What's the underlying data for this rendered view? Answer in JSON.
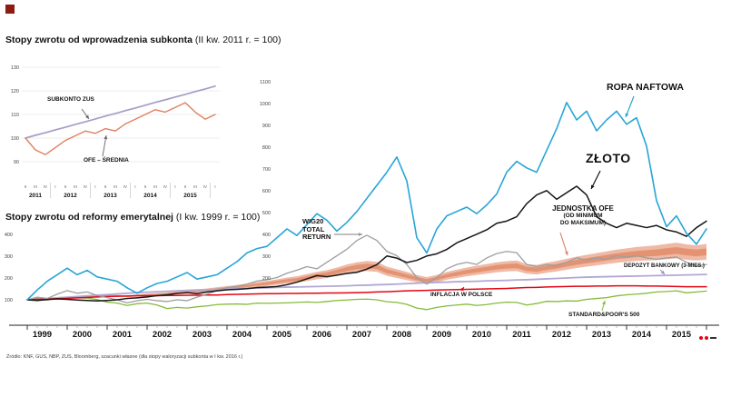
{
  "source": "Źródło: KNF, GUS, NBP, ZUS, Bloomberg, szacunki własne (dla stopy waloryzacji subkonta w I kw. 2016 r.)",
  "brand": {
    "square_color": "#8c1b12"
  },
  "inset_chart": {
    "title_bold": "Stopy zwrotu od wprowadzenia subkonta",
    "title_normal": " (II kw. 2011 r. = 100)",
    "labels": {
      "subkonto": "SUBKONTO ZUS",
      "ofe": "OFE – ŚREDNIA"
    },
    "chart_data": {
      "type": "line",
      "ylim": [
        86,
        134
      ],
      "yticks": [
        90,
        100,
        110,
        120,
        130
      ],
      "grid": true,
      "x_quarters": [
        "II",
        "III",
        "IV",
        "I",
        "II",
        "III",
        "IV",
        "I",
        "II",
        "III",
        "IV",
        "I",
        "II",
        "III",
        "IV",
        "I",
        "II",
        "III",
        "IV",
        "I"
      ],
      "year_groups": [
        {
          "label": "2011",
          "span": [
            0,
            2
          ]
        },
        {
          "label": "2012",
          "span": [
            3,
            6
          ]
        },
        {
          "label": "2013",
          "span": [
            7,
            10
          ]
        },
        {
          "label": "2014",
          "span": [
            11,
            14
          ]
        },
        {
          "label": "2015",
          "span": [
            15,
            18
          ]
        }
      ],
      "series": [
        {
          "name": "SUBKONTO ZUS",
          "color": "#a79cc8",
          "width": 1.7,
          "values": [
            100,
            101.2,
            102.3,
            103.5,
            104.6,
            105.8,
            106.9,
            108.1,
            109.3,
            110.4,
            111.6,
            112.7,
            113.9,
            115.1,
            116.2,
            117.4,
            118.5,
            119.7,
            120.8,
            122
          ]
        },
        {
          "name": "OFE – ŚREDNIA",
          "color": "#e08060",
          "width": 1.4,
          "values": [
            100,
            95,
            93,
            96,
            99,
            101,
            103,
            102,
            104,
            103,
            106,
            108,
            110,
            112,
            111,
            113,
            115,
            111,
            108,
            110
          ]
        }
      ]
    }
  },
  "main_chart": {
    "title_bold": "Stopy zwrotu od reformy emerytalnej",
    "title_normal": " (I kw. 1999 r. = 100)",
    "annotations": {
      "ropa": "ROPA NAFTOWA",
      "zloto": "ZŁOTO",
      "ofe_line1": "JEDNOSTKA OFE",
      "ofe_line2": "(OD MINIMUM",
      "ofe_line3": "DO MAKSIMUM)",
      "wig20_line1": "WIG20",
      "wig20_line2": "TOTAL",
      "wig20_line3": "RETURN",
      "depozyt": "DEPOZYT BANKOWY (3-MIES.)",
      "inflacja": "INFLACJA W POLSCE",
      "sp500": "STANDARD&POOR'S 500"
    },
    "chart_data": {
      "type": "line",
      "ylim": [
        50,
        1100
      ],
      "yticks_right": [
        1100,
        1000,
        900,
        800,
        700,
        600,
        500,
        400,
        300,
        200
      ],
      "yticks_left": [
        400,
        300,
        200,
        100
      ],
      "grid": false,
      "points_per_year": 4,
      "x_years": [
        "1999",
        "2000",
        "2001",
        "2002",
        "2003",
        "2004",
        "2005",
        "2006",
        "2007",
        "2008",
        "2009",
        "2010",
        "2011",
        "2012",
        "2013",
        "2014",
        "2015"
      ],
      "band": {
        "name": "JEDNOSTKA OFE (OD MINIMUM DO MAKSIMUM)",
        "color_outer": "#edb19b",
        "color_inner": "#e1906f",
        "min": [
          100,
          102,
          104,
          106,
          108,
          110,
          112,
          114,
          113,
          115,
          112,
          116,
          118,
          120,
          122,
          126,
          128,
          132,
          136,
          140,
          144,
          148,
          152,
          158,
          162,
          168,
          174,
          178,
          186,
          194,
          200,
          210,
          220,
          228,
          232,
          228,
          210,
          200,
          190,
          180,
          172,
          180,
          192,
          200,
          208,
          214,
          220,
          226,
          230,
          232,
          220,
          216,
          224,
          230,
          238,
          246,
          252,
          258,
          264,
          270,
          274,
          278,
          280,
          282,
          286,
          290,
          284,
          280,
          284
        ],
        "max": [
          100,
          104,
          107,
          110,
          113,
          116,
          119,
          122,
          121,
          123,
          120,
          125,
          128,
          131,
          134,
          139,
          142,
          147,
          152,
          158,
          163,
          168,
          174,
          181,
          187,
          194,
          202,
          208,
          218,
          228,
          236,
          248,
          262,
          272,
          278,
          274,
          252,
          240,
          228,
          214,
          204,
          214,
          228,
          238,
          248,
          256,
          264,
          272,
          277,
          280,
          264,
          260,
          270,
          278,
          288,
          298,
          306,
          314,
          322,
          330,
          336,
          342,
          346,
          350,
          356,
          362,
          354,
          350,
          356
        ]
      },
      "series": [
        {
          "name": "STANDARD&POOR'S 500",
          "color": "#86bb3a",
          "width": 1.3,
          "values": [
            100,
            106,
            99,
            110,
            112,
            109,
            108,
            101,
            89,
            85,
            74,
            82,
            85,
            76,
            60,
            65,
            62,
            68,
            72,
            78,
            80,
            81,
            79,
            85,
            84,
            85,
            86,
            88,
            90,
            88,
            92,
            97,
            99,
            102,
            103,
            100,
            91,
            88,
            79,
            62,
            55,
            65,
            72,
            76,
            80,
            74,
            78,
            85,
            89,
            88,
            76,
            83,
            93,
            92,
            95,
            94,
            102,
            106,
            110,
            118,
            123,
            126,
            130,
            136,
            138,
            141,
            132,
            136,
            140
          ]
        },
        {
          "name": "DEPOZYT BANKOWY (3-MIES.)",
          "color": "#b2a8d4",
          "width": 1.8,
          "values": [
            100,
            103,
            106,
            109,
            112,
            115,
            118,
            121,
            124,
            127,
            130,
            133,
            135,
            137,
            139,
            141,
            143,
            145,
            146,
            148,
            149,
            151,
            152,
            154,
            155,
            157,
            158,
            159,
            160,
            161,
            162,
            163,
            164,
            166,
            167,
            169,
            170,
            172,
            174,
            176,
            178,
            180,
            181,
            183,
            184,
            185,
            187,
            188,
            189,
            191,
            192,
            194,
            196,
            198,
            200,
            202,
            204,
            205,
            206,
            207,
            208,
            209,
            210,
            211,
            212,
            213,
            214,
            215,
            216
          ]
        },
        {
          "name": "INFLACJA W POLSCE",
          "color": "#e30613",
          "width": 1.5,
          "values": [
            100,
            102,
            103,
            105,
            107,
            109,
            111,
            113,
            115,
            116,
            117,
            118,
            119,
            119,
            120,
            120,
            121,
            121,
            122,
            122,
            124,
            125,
            126,
            127,
            128,
            128,
            129,
            129,
            130,
            130,
            131,
            131,
            132,
            133,
            134,
            136,
            137,
            139,
            141,
            142,
            143,
            145,
            146,
            147,
            148,
            149,
            150,
            151,
            152,
            154,
            156,
            157,
            159,
            160,
            161,
            162,
            162,
            163,
            163,
            164,
            164,
            164,
            163,
            163,
            162,
            161,
            160,
            160,
            160
          ]
        },
        {
          "name": "WIG20 TOTAL RETURN",
          "color": "#9e9e9e",
          "width": 1.3,
          "values": [
            100,
            112,
            106,
            126,
            142,
            130,
            136,
            120,
            110,
            100,
            86,
            96,
            102,
            96,
            92,
            100,
            96,
            112,
            126,
            142,
            156,
            162,
            172,
            186,
            192,
            202,
            222,
            236,
            252,
            242,
            272,
            302,
            332,
            372,
            396,
            372,
            322,
            302,
            262,
            202,
            172,
            202,
            242,
            262,
            272,
            262,
            292,
            312,
            322,
            316,
            262,
            252,
            262,
            256,
            272,
            292,
            282,
            292,
            286,
            302,
            296,
            302,
            292,
            286,
            292,
            296,
            272,
            256,
            262
          ]
        },
        {
          "name": "ZŁOTO",
          "color": "#161616",
          "width": 1.5,
          "values": [
            100,
            97,
            101,
            104,
            102,
            99,
            97,
            95,
            97,
            100,
            106,
            109,
            113,
            119,
            123,
            129,
            133,
            128,
            136,
            141,
            146,
            148,
            151,
            156,
            158,
            161,
            169,
            181,
            196,
            211,
            206,
            213,
            221,
            226,
            241,
            261,
            301,
            291,
            271,
            281,
            301,
            311,
            331,
            361,
            381,
            401,
            421,
            451,
            461,
            481,
            541,
            581,
            601,
            561,
            591,
            621,
            581,
            481,
            451,
            431,
            451,
            441,
            431,
            441,
            421,
            411,
            391,
            431,
            461
          ]
        },
        {
          "name": "ROPA NAFTOWA",
          "color": "#29a5d6",
          "width": 1.6,
          "values": [
            100,
            145,
            185,
            215,
            245,
            215,
            235,
            205,
            195,
            185,
            155,
            130,
            155,
            175,
            185,
            205,
            225,
            195,
            205,
            215,
            245,
            275,
            315,
            335,
            345,
            385,
            425,
            395,
            445,
            495,
            465,
            415,
            455,
            505,
            565,
            625,
            685,
            755,
            645,
            385,
            315,
            425,
            485,
            505,
            525,
            495,
            535,
            585,
            685,
            735,
            705,
            685,
            785,
            885,
            1005,
            925,
            965,
            875,
            925,
            965,
            905,
            935,
            805,
            555,
            435,
            485,
            405,
            355,
            425
          ]
        }
      ]
    }
  }
}
